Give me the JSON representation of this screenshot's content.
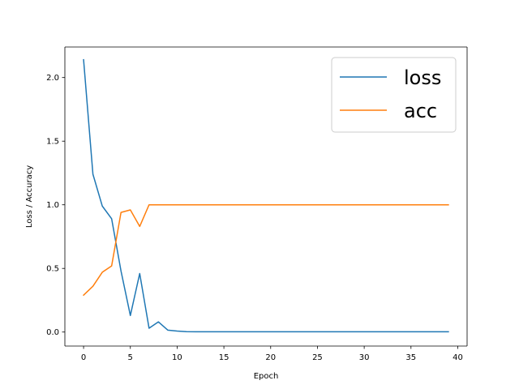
{
  "chart_data": {
    "type": "line",
    "title": "",
    "xlabel": "Epoch",
    "ylabel": "Loss / Accuracy",
    "xlim": [
      -2,
      41
    ],
    "ylim": [
      -0.11,
      2.24
    ],
    "xticks": [
      0,
      5,
      10,
      15,
      20,
      25,
      30,
      35,
      40
    ],
    "yticks": [
      0.0,
      0.5,
      1.0,
      1.5,
      2.0
    ],
    "xtick_labels": [
      "0",
      "5",
      "10",
      "15",
      "20",
      "25",
      "30",
      "35",
      "40"
    ],
    "ytick_labels": [
      "0.0",
      "0.5",
      "1.0",
      "1.5",
      "2.0"
    ],
    "grid": false,
    "legend_position": "top-right",
    "x": [
      0,
      1,
      2,
      3,
      4,
      5,
      6,
      7,
      8,
      9,
      10,
      11,
      12,
      13,
      14,
      15,
      16,
      17,
      18,
      19,
      20,
      21,
      22,
      23,
      24,
      25,
      26,
      27,
      28,
      29,
      30,
      31,
      32,
      33,
      34,
      35,
      36,
      37,
      38,
      39
    ],
    "series": [
      {
        "name": "loss",
        "color": "#1f77b4",
        "values": [
          2.14,
          1.24,
          0.99,
          0.89,
          0.48,
          0.13,
          0.46,
          0.03,
          0.08,
          0.015,
          0.008,
          0.003,
          0.002,
          0.002,
          0.002,
          0.002,
          0.002,
          0.002,
          0.002,
          0.002,
          0.002,
          0.002,
          0.002,
          0.002,
          0.002,
          0.002,
          0.002,
          0.002,
          0.002,
          0.002,
          0.002,
          0.002,
          0.002,
          0.002,
          0.002,
          0.002,
          0.002,
          0.002,
          0.002,
          0.002
        ]
      },
      {
        "name": "acc",
        "color": "#ff7f0e",
        "values": [
          0.29,
          0.36,
          0.47,
          0.52,
          0.94,
          0.96,
          0.83,
          1.0,
          1.0,
          1.0,
          1.0,
          1.0,
          1.0,
          1.0,
          1.0,
          1.0,
          1.0,
          1.0,
          1.0,
          1.0,
          1.0,
          1.0,
          1.0,
          1.0,
          1.0,
          1.0,
          1.0,
          1.0,
          1.0,
          1.0,
          1.0,
          1.0,
          1.0,
          1.0,
          1.0,
          1.0,
          1.0,
          1.0,
          1.0,
          1.0
        ]
      }
    ]
  }
}
